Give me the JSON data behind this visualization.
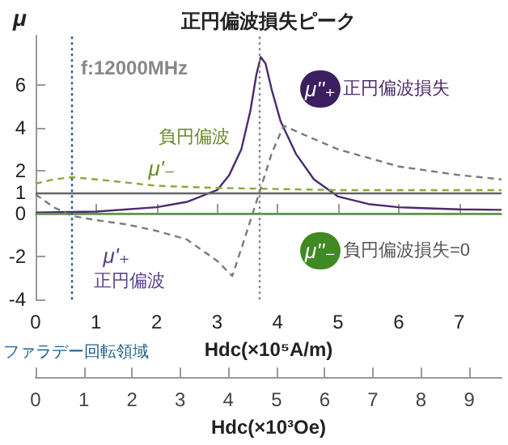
{
  "chart_data": {
    "type": "line",
    "title": "正円偏波損失ピーク",
    "xlabel": "Hdc(×10⁵A/m)",
    "x2label": "Hdc(×10³Oe)",
    "ylabel": "μ",
    "xlim": [
      0,
      7.7
    ],
    "xticks": [
      0,
      1,
      2,
      3,
      4,
      5,
      6,
      7
    ],
    "x2lim": [
      0,
      9.67
    ],
    "x2ticks": [
      0,
      1,
      2,
      3,
      4,
      5,
      6,
      7,
      8,
      9
    ],
    "ylim": [
      -4,
      8.3
    ],
    "yticks": [
      -4,
      -2,
      0,
      1,
      2,
      4,
      6
    ],
    "grid": false,
    "marker": "none",
    "series": [
      {
        "color": "#4b2a6e",
        "line_style": "solid",
        "x": [
          0,
          1,
          2,
          2.5,
          3,
          3.2,
          3.4,
          3.55,
          3.65,
          3.72,
          3.8,
          3.9,
          4.05,
          4.3,
          4.6,
          5,
          5.5,
          6,
          7,
          7.7
        ],
        "values": [
          0.05,
          0.1,
          0.3,
          0.55,
          1.1,
          1.8,
          3,
          4.8,
          6.5,
          7.3,
          7,
          5.8,
          4.3,
          2.8,
          1.6,
          0.8,
          0.45,
          0.3,
          0.2,
          0.18
        ]
      },
      {
        "color": "#7a7a7a",
        "line_style": "dashed",
        "x": [
          0,
          0.3,
          0.6,
          1,
          1.5,
          2,
          2.5,
          3,
          3.25,
          3.45,
          3.7,
          3.9,
          4.1,
          4.5,
          5,
          6,
          7,
          7.7
        ],
        "values": [
          0.9,
          0.3,
          -0.1,
          -0.3,
          -0.5,
          -0.8,
          -1.2,
          -2.2,
          -2.9,
          -1.2,
          1,
          2.8,
          4.1,
          3.6,
          3,
          2.2,
          1.8,
          1.6
        ]
      },
      {
        "color": "#8aa83a",
        "line_style": "dashed",
        "x": [
          0,
          0.3,
          0.6,
          1,
          1.5,
          2,
          3,
          4,
          5,
          6,
          7.7
        ],
        "values": [
          1.4,
          1.6,
          1.7,
          1.6,
          1.45,
          1.3,
          1.2,
          1.15,
          1.1,
          1.1,
          1.1
        ]
      },
      {
        "color": "#5e9e32",
        "line_style": "solid",
        "x": [
          0,
          7.7
        ],
        "values": [
          0,
          0
        ]
      }
    ],
    "ref_lines": [
      {
        "axis": "y",
        "value": 1,
        "color": "#666666",
        "line_style": "solid"
      },
      {
        "axis": "x",
        "value": 3.7,
        "color": "#888888",
        "line_style": "dotted"
      },
      {
        "axis": "x",
        "value": 0.6,
        "color": "#1d5f86",
        "line_style": "dotted",
        "label": "ファラデー回転領域"
      }
    ],
    "annotations": [
      "f:12000MHz",
      "μ''₊",
      "正円偏波損失",
      "μ''₋",
      "負円偏波損失=0",
      "負円偏波",
      "μ'₋",
      "μ'₊",
      "正円偏波"
    ]
  }
}
